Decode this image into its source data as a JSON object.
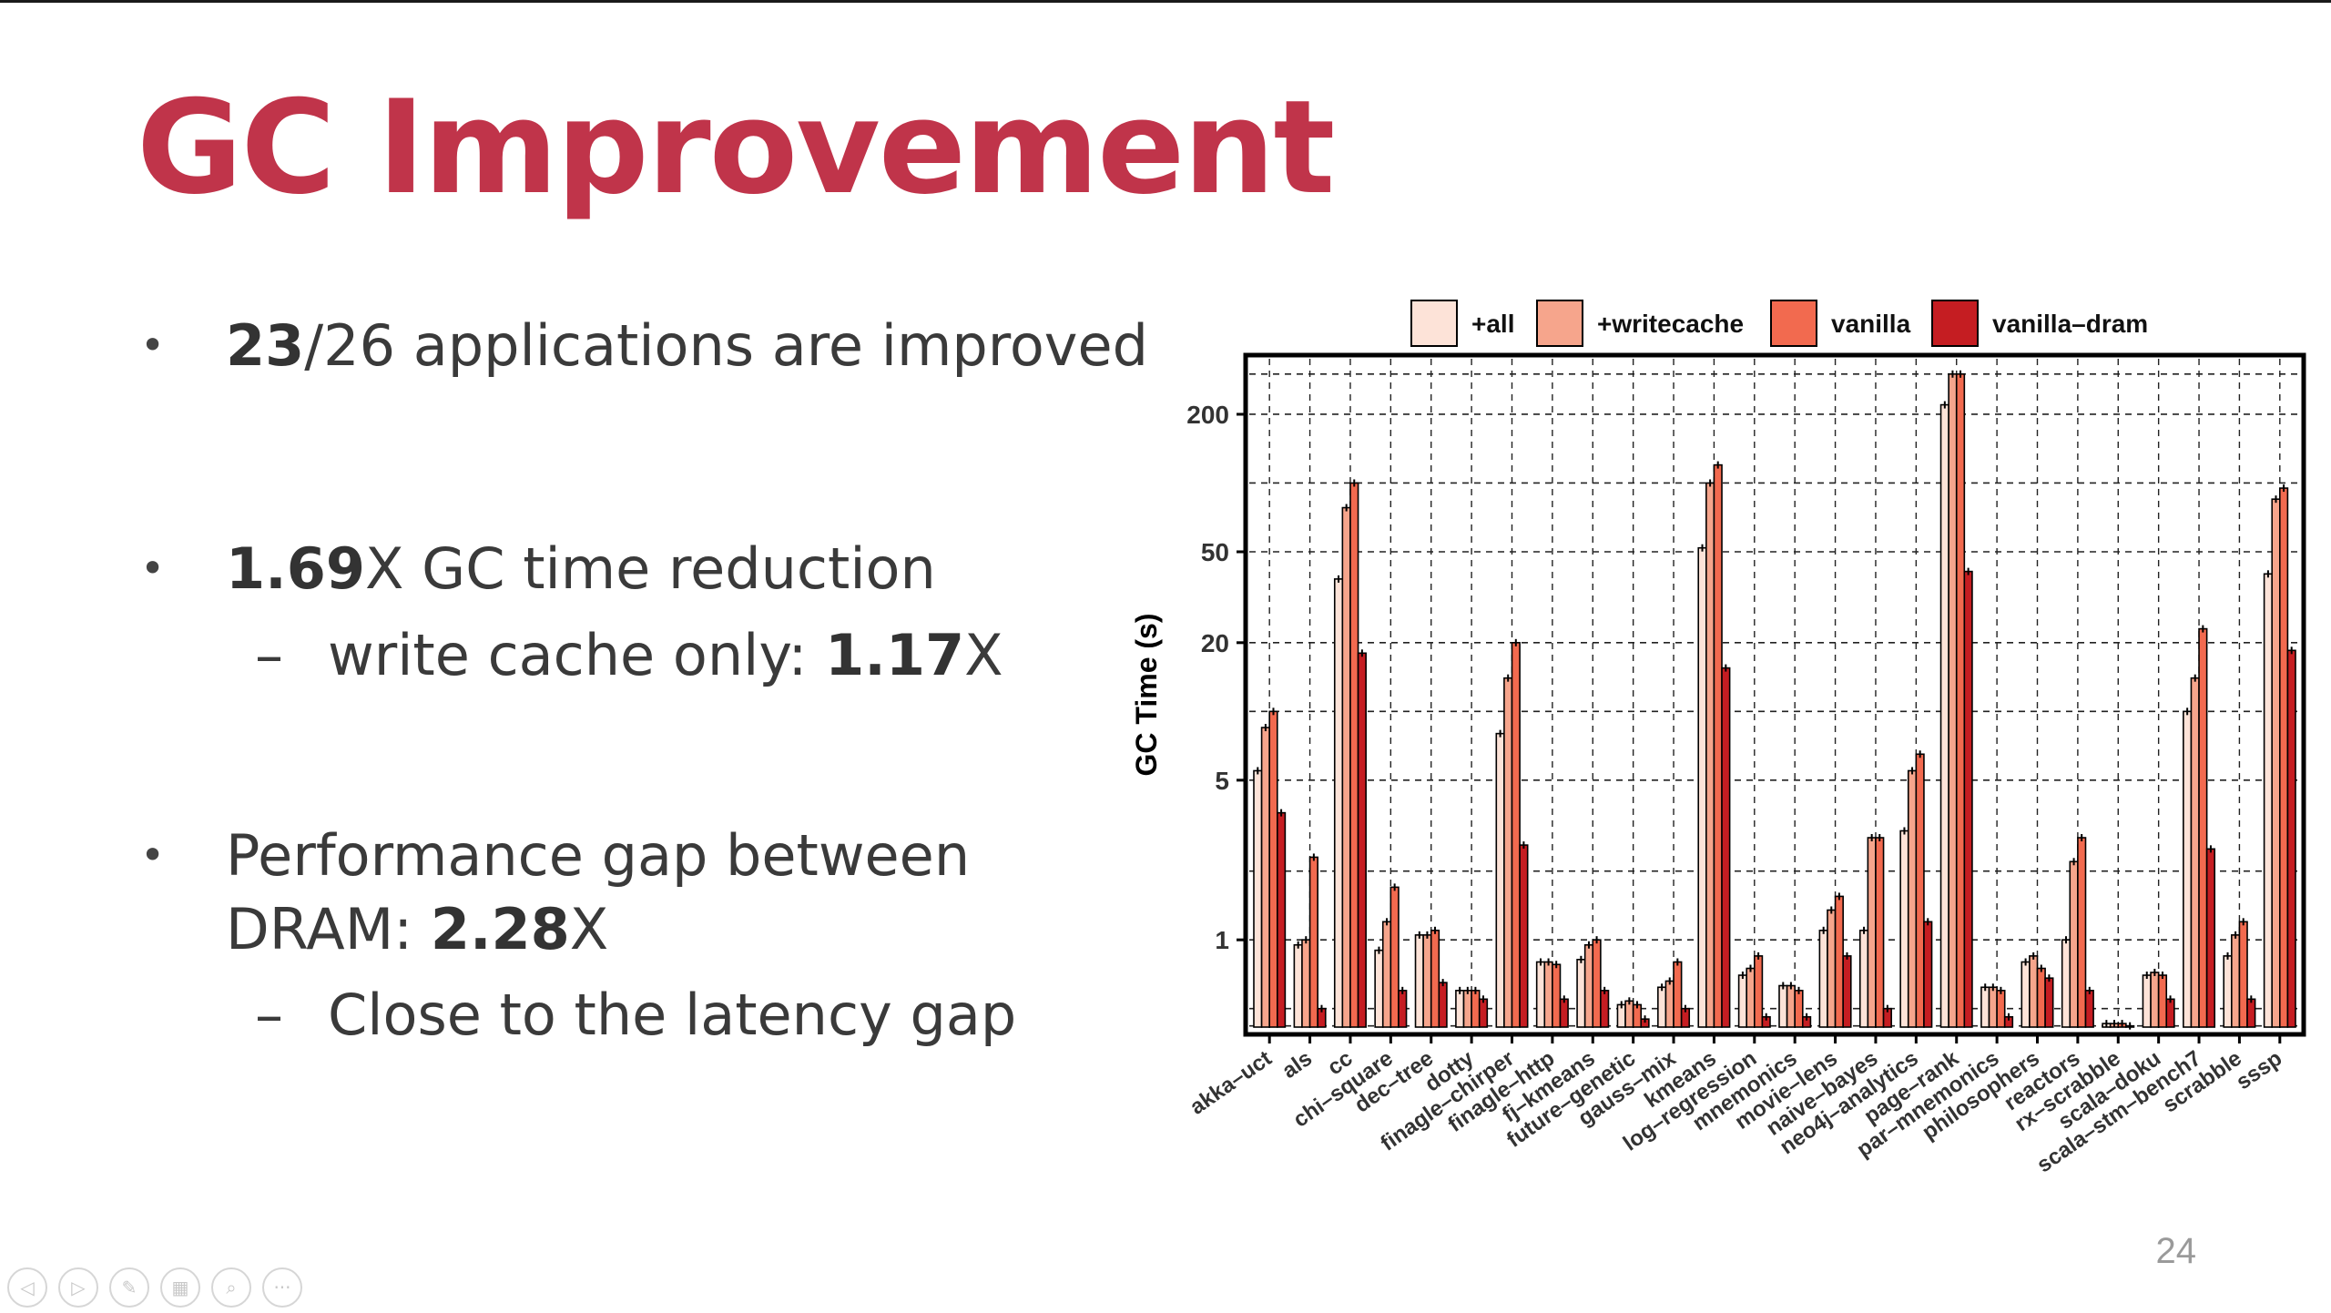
{
  "slide": {
    "title": "GC Improvement",
    "page_number": "24",
    "bullets": [
      {
        "bold": "23",
        "rest": "/26 applications are improved"
      },
      {
        "bold": "1.69",
        "rest": "X GC time reduction"
      },
      {
        "pre": "Performance gap between DRAM: ",
        "bold": "2.28",
        "rest": "X"
      }
    ],
    "subbullets": [
      {
        "pre": "write cache only: ",
        "bold": "1.17",
        "rest": "X"
      },
      {
        "text": "Close to the latency gap"
      }
    ],
    "nav_icons": [
      "prev-icon",
      "next-icon",
      "pen-icon",
      "slides-icon",
      "zoom-icon",
      "more-icon"
    ]
  },
  "chart_data": {
    "type": "bar",
    "ylabel": "GC Time (s)",
    "yscale": "log",
    "ylim": [
      0.4,
      350
    ],
    "yticks": [
      1,
      5,
      20,
      50,
      200
    ],
    "ytick_labels": [
      "1",
      "5",
      "20",
      "50",
      "200"
    ],
    "grid": true,
    "legend_position": "top",
    "categories": [
      "akka–uct",
      "als",
      "cc",
      "chi–square",
      "dec–tree",
      "dotty",
      "finagle–chirper",
      "finagle–http",
      "fj–kmeans",
      "future–genetic",
      "gauss–mix",
      "kmeans",
      "log–regression",
      "mnemonics",
      "movie–lens",
      "naive–bayes",
      "neo4j–analytics",
      "page–rank",
      "par–mnemonics",
      "philosophers",
      "reactors",
      "rx–scrabble",
      "scala–doku",
      "scala–stm–bench7",
      "scrabble",
      "sssp"
    ],
    "series": [
      {
        "name": "+all",
        "color": "#fde3d8",
        "values": [
          5.5,
          0.95,
          38,
          0.9,
          1.05,
          0.6,
          8,
          0.8,
          0.82,
          0.52,
          0.62,
          52,
          0.7,
          0.63,
          1.1,
          1.1,
          3,
          220,
          0.62,
          0.8,
          1,
          0.43,
          0.7,
          10,
          0.85,
          40
        ]
      },
      {
        "name": "+writecache",
        "color": "#f6a58c",
        "values": [
          8.5,
          1,
          78,
          1.2,
          1.05,
          0.6,
          14,
          0.8,
          0.95,
          0.54,
          0.66,
          100,
          0.75,
          0.63,
          1.35,
          2.8,
          5.5,
          300,
          0.62,
          0.85,
          2.2,
          0.43,
          0.72,
          14,
          1.05,
          85
        ]
      },
      {
        "name": "vanilla",
        "color": "#f26a4f",
        "values": [
          10,
          2.3,
          100,
          1.7,
          1.1,
          0.6,
          20,
          0.78,
          1,
          0.52,
          0.8,
          120,
          0.85,
          0.6,
          1.55,
          2.8,
          6.5,
          300,
          0.6,
          0.75,
          2.8,
          0.43,
          0.7,
          23,
          1.2,
          95
        ]
      },
      {
        "name": "vanilla–dram",
        "color": "#c51d22",
        "values": [
          3.6,
          0.5,
          18,
          0.6,
          0.65,
          0.55,
          2.6,
          0.55,
          0.6,
          0.45,
          0.5,
          15.5,
          0.46,
          0.46,
          0.85,
          0.5,
          1.2,
          41,
          0.46,
          0.68,
          0.6,
          0.42,
          0.55,
          2.5,
          0.55,
          18.5
        ]
      }
    ]
  }
}
